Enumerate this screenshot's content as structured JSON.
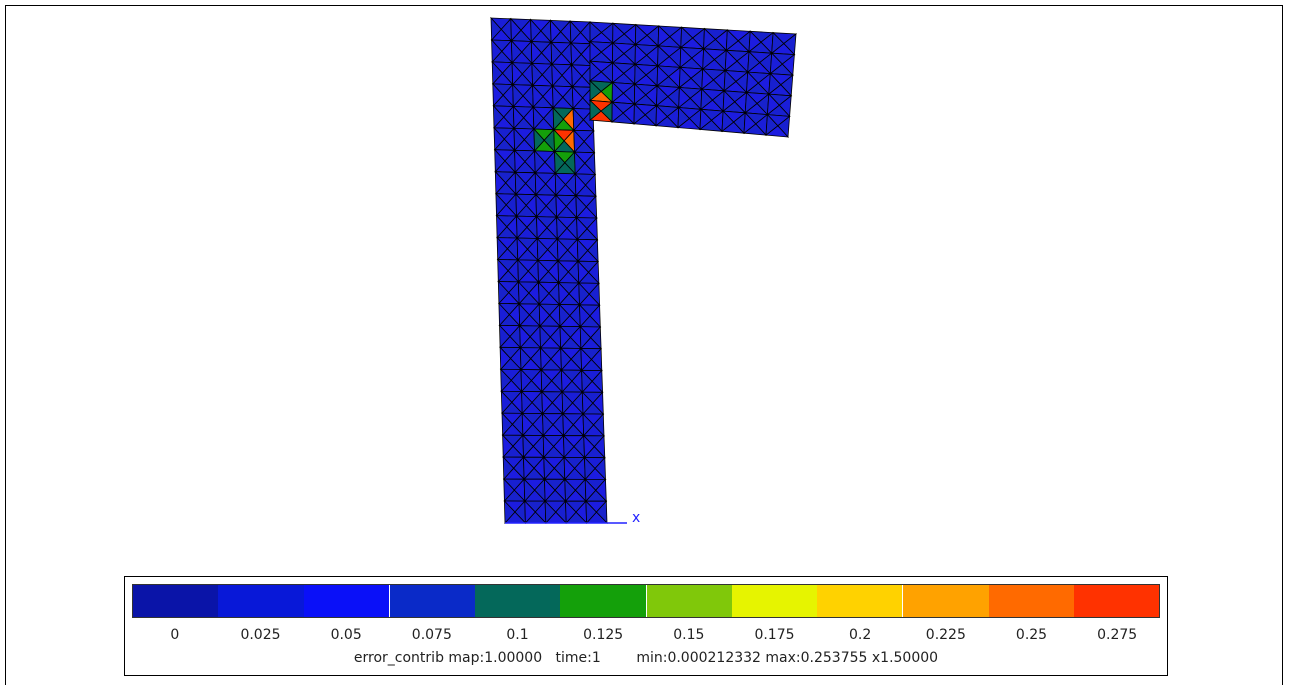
{
  "axis": {
    "x_label": "x"
  },
  "legend": {
    "ticks": [
      "0",
      "0.025",
      "0.05",
      "0.075",
      "0.1",
      "0.125",
      "0.15",
      "0.175",
      "0.2",
      "0.225",
      "0.25",
      "0.275"
    ],
    "colors": [
      "#0a14a8",
      "#0818d8",
      "#0a10f8",
      "#0a2ac8",
      "#04685a",
      "#14a00a",
      "#80c80a",
      "#e6f400",
      "#ffd200",
      "#ffa200",
      "#ff6a00",
      "#ff3200"
    ],
    "caption": "error_contrib map:1.00000   time:1        min:0.000212332 max:0.253755 x1.50000"
  },
  "mesh": {
    "base_color": "#1a1ed8",
    "hot_cells": [
      {
        "color": "#04685a"
      },
      {
        "color": "#ff6a00"
      },
      {
        "color": "#14a00a"
      },
      {
        "color": "#ff3200"
      }
    ]
  }
}
